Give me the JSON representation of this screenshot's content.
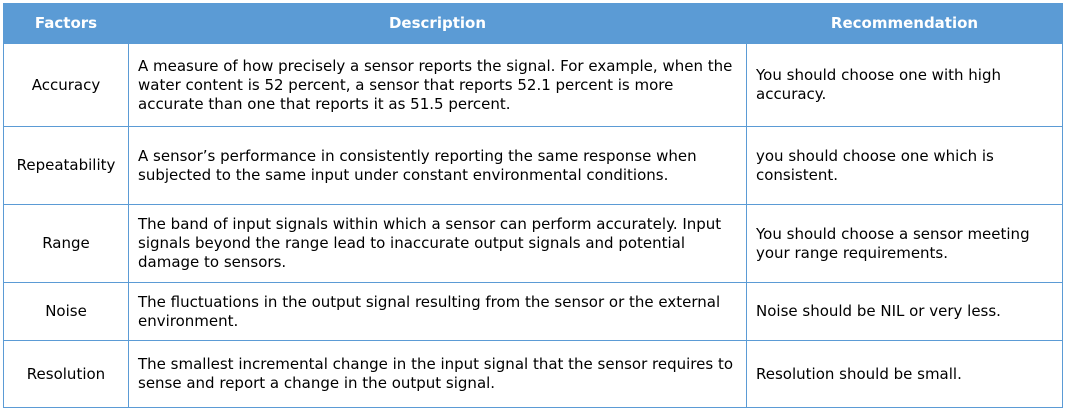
{
  "table": {
    "headers": [
      "Factors",
      "Description",
      "Recommendation"
    ],
    "rows": [
      {
        "factor": "Accuracy",
        "description": "A measure of how precisely a sensor reports the signal. For example, when the water content is 52 percent, a sensor that reports 52.1 percent is more accurate than one that reports it as 51.5 percent.",
        "recommendation": "You should choose one with high accuracy."
      },
      {
        "factor": "Repeatability",
        "description": "A sensor’s performance in consistently reporting the same response when subjected to the same input under constant environmental conditions.",
        "recommendation": "you should choose one which is consistent."
      },
      {
        "factor": "Range",
        "description": "The band of input signals within which a sensor can perform accurately. Input signals beyond the range lead to inaccurate output signals and potential damage to sensors.",
        "recommendation": "You should choose a sensor meeting your range requirements."
      },
      {
        "factor": "Noise",
        "description": "The fluctuations in the output signal resulting from the sensor or the external environment.",
        "recommendation": "Noise should be NIL or very less."
      },
      {
        "factor": "Resolution",
        "description": "The smallest incremental change in the input signal that the sensor requires to sense and report a change in the output signal.",
        "recommendation": "Resolution should be small."
      }
    ]
  }
}
